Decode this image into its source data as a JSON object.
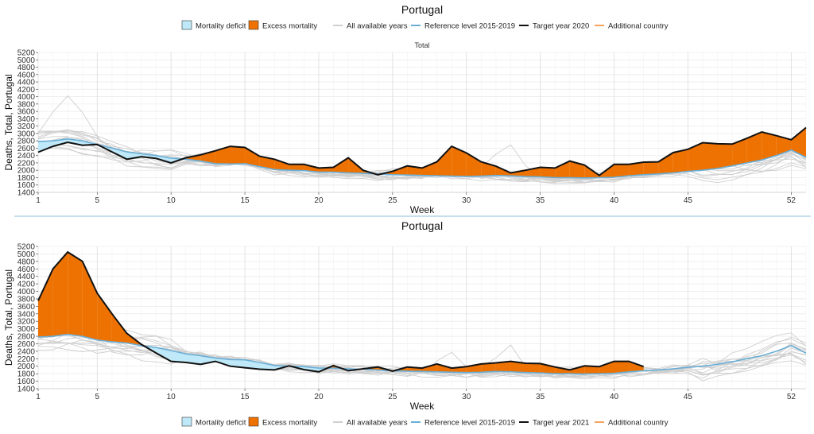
{
  "legend_items": {
    "deficit": "Mortality deficit",
    "excess": "Excess mortality",
    "all_years": "All available years",
    "reference": "Reference level 2015-2019",
    "additional": "Additional country"
  },
  "colors": {
    "excess": "#ee7202",
    "deficit": "#bfe9f8",
    "reference": "#6aaed6",
    "target": "#111111",
    "background_lines": "#cfcfcf",
    "additional": "#f4a460",
    "divider": "#8fbcd8"
  },
  "chart_data": [
    {
      "type": "area",
      "title": "Portugal",
      "subtitle": "Total",
      "xlabel": "Week",
      "ylabel": "Deaths, Total, Portugal",
      "legend_target": "Target year 2020",
      "ylim": [
        1400,
        5200
      ],
      "xlim": [
        1,
        53
      ],
      "x_ticks": [
        1,
        5,
        10,
        15,
        20,
        25,
        30,
        35,
        40,
        45,
        52
      ],
      "y_ticks": [
        1400,
        1600,
        1800,
        2000,
        2200,
        2400,
        2600,
        2800,
        3000,
        3200,
        3400,
        3600,
        3800,
        4000,
        4200,
        4400,
        4600,
        4800,
        5000,
        5200
      ],
      "grid": true,
      "legend_position": "top",
      "reference_2015_2019": [
        2780,
        2800,
        2850,
        2800,
        2700,
        2600,
        2500,
        2450,
        2400,
        2330,
        2300,
        2250,
        2180,
        2170,
        2180,
        2100,
        2020,
        2000,
        1990,
        1950,
        1950,
        1930,
        1920,
        1900,
        1880,
        1870,
        1860,
        1850,
        1840,
        1830,
        1840,
        1860,
        1850,
        1830,
        1820,
        1800,
        1800,
        1790,
        1800,
        1810,
        1850,
        1880,
        1900,
        1930,
        1970,
        2000,
        2050,
        2120,
        2200,
        2280,
        2400,
        2550,
        2350
      ],
      "target_2020": [
        2490,
        2650,
        2760,
        2680,
        2700,
        2500,
        2300,
        2370,
        2320,
        2200,
        2340,
        2420,
        2530,
        2650,
        2620,
        2380,
        2300,
        2160,
        2160,
        2060,
        2080,
        2340,
        2000,
        1880,
        1970,
        2120,
        2060,
        2230,
        2650,
        2470,
        2230,
        2110,
        1930,
        2000,
        2080,
        2060,
        2250,
        2140,
        1860,
        2160,
        2160,
        2220,
        2230,
        2480,
        2570,
        2750,
        2720,
        2710,
        2870,
        3040,
        2940,
        2830,
        3160
      ]
    },
    {
      "type": "area",
      "title": "Portugal",
      "subtitle": "",
      "xlabel": "Week",
      "ylabel": "Deaths, Total, Portugal",
      "legend_target": "Target year 2021",
      "ylim": [
        1400,
        5200
      ],
      "xlim": [
        1,
        53
      ],
      "x_ticks": [
        1,
        5,
        10,
        15,
        20,
        25,
        30,
        35,
        40,
        45,
        52
      ],
      "y_ticks": [
        1400,
        1600,
        1800,
        2000,
        2200,
        2400,
        2600,
        2800,
        3000,
        3200,
        3400,
        3600,
        3800,
        4000,
        4200,
        4400,
        4600,
        4800,
        5000,
        5200
      ],
      "grid": true,
      "legend_position": "bottom",
      "reference_2015_2019": [
        2780,
        2800,
        2850,
        2800,
        2700,
        2650,
        2620,
        2550,
        2500,
        2420,
        2330,
        2280,
        2220,
        2180,
        2170,
        2100,
        2020,
        2000,
        1990,
        1950,
        1950,
        1930,
        1920,
        1900,
        1880,
        1870,
        1860,
        1850,
        1840,
        1830,
        1840,
        1860,
        1850,
        1830,
        1820,
        1800,
        1800,
        1790,
        1800,
        1810,
        1850,
        1880,
        1900,
        1930,
        1970,
        2000,
        2050,
        2120,
        2200,
        2280,
        2400,
        2550,
        2350
      ],
      "target_2021": [
        3750,
        4600,
        5050,
        4800,
        3950,
        3400,
        2880,
        2580,
        2350,
        2130,
        2100,
        2050,
        2130,
        2000,
        1960,
        1920,
        1900,
        2010,
        1910,
        1850,
        2020,
        1880,
        1930,
        1980,
        1870,
        1980,
        1950,
        2060,
        1950,
        1990,
        2060,
        2090,
        2130,
        2080,
        2070,
        1980,
        1900,
        2010,
        1990,
        2130,
        2130,
        1990
      ]
    }
  ]
}
